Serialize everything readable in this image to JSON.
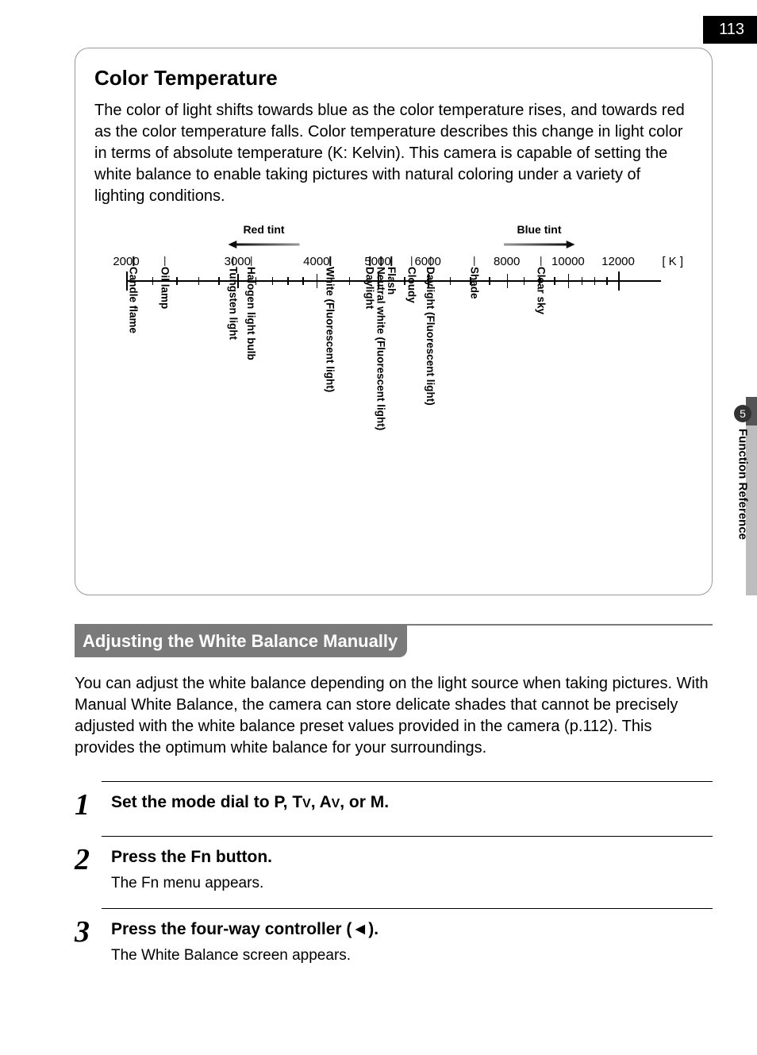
{
  "page_number": "113",
  "side": {
    "chapter_num": "5",
    "chapter_label": "Function Reference"
  },
  "box": {
    "title": "Color Temperature",
    "body": "The color of light shifts towards blue as the color temperature rises, and towards red as the color temperature falls. Color temperature describes this change in light color in terms of absolute temperature (K: Kelvin). This camera is capable of setting the white balance to enable taking pictures with natural coloring under a variety of lighting conditions.",
    "tint_left": "Red tint",
    "tint_right": "Blue tint",
    "unit": "[ K ]",
    "axis": {
      "min": 2000,
      "max": 12000,
      "major_labels": [
        {
          "v": 2000,
          "t": "2000"
        },
        {
          "v": 3000,
          "t": "3000"
        },
        {
          "v": 4000,
          "t": "4000"
        },
        {
          "v": 5000,
          "t": "5000"
        },
        {
          "v": 6000,
          "t": "6000"
        },
        {
          "v": 8000,
          "t": "8000"
        },
        {
          "v": 10000,
          "t": "10000"
        },
        {
          "v": 12000,
          "t": "12000"
        }
      ]
    },
    "markers": [
      {
        "v": 2050,
        "t": "Candle flame"
      },
      {
        "v": 2300,
        "t": "Oil lamp"
      },
      {
        "v": 2950,
        "t": "Tungsten light"
      },
      {
        "v": 3150,
        "t": "Halogen light bulb"
      },
      {
        "v": 4200,
        "t": "White (Fluorescent light)"
      },
      {
        "v": 4850,
        "t": "Daylight"
      },
      {
        "v": 5050,
        "t": "Neutral white (Fluorescent light)"
      },
      {
        "v": 5250,
        "t": "Flash"
      },
      {
        "v": 5650,
        "t": "Cloudy"
      },
      {
        "v": 6050,
        "t": "Daylight (Fluorescent light)"
      },
      {
        "v": 7100,
        "t": "Shade"
      },
      {
        "v": 9050,
        "t": "Clear sky"
      }
    ]
  },
  "section": {
    "heading": "Adjusting the White Balance Manually",
    "body": "You can adjust the white balance depending on the light source when taking pictures. With Manual White Balance, the camera can store delicate shades that cannot be precisely adjusted with the white balance preset values provided in the camera (p.112). This provides the optimum white balance for your surroundings."
  },
  "steps": [
    {
      "n": "1",
      "title_parts": [
        "Set the mode dial to ",
        "P",
        ", ",
        "Tv",
        ", ",
        "Av",
        ", or ",
        "M",
        "."
      ],
      "desc": ""
    },
    {
      "n": "2",
      "title_parts": [
        "Press the ",
        "Fn",
        " button."
      ],
      "desc": "The Fn menu appears."
    },
    {
      "n": "3",
      "title_parts": [
        "Press the four-way controller (",
        "◄",
        ")."
      ],
      "desc": "The White Balance screen appears."
    }
  ]
}
